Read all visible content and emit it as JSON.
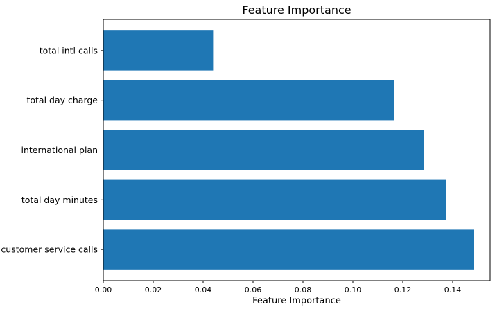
{
  "chart_data": {
    "type": "bar",
    "orientation": "horizontal",
    "title": "Feature Importance",
    "xlabel": "Feature Importance",
    "ylabel": "",
    "categories": [
      "customer service calls",
      "total day minutes",
      "international plan",
      "total day charge",
      "total intl calls"
    ],
    "values": [
      0.1485,
      0.1375,
      0.1285,
      0.1165,
      0.044
    ],
    "xlim": [
      0,
      0.155
    ],
    "xticks": [
      0.0,
      0.02,
      0.04,
      0.06,
      0.08,
      0.1,
      0.12,
      0.14
    ],
    "xtick_labels": [
      "0.00",
      "0.02",
      "0.04",
      "0.06",
      "0.08",
      "0.10",
      "0.12",
      "0.14"
    ],
    "bar_color": "#1f77b4",
    "grid": false,
    "legend": "none"
  }
}
